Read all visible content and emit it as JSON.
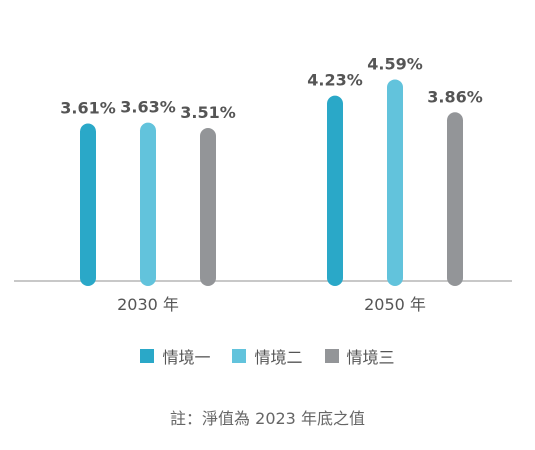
{
  "chart_data": {
    "type": "bar",
    "categories": [
      "2030 年",
      "2050 年"
    ],
    "series": [
      {
        "name": "情境一",
        "color": "#2aa8c8",
        "values": [
          3.61,
          4.23
        ],
        "labels": [
          "3.61%",
          "4.23%"
        ]
      },
      {
        "name": "情境二",
        "color": "#62c3dc",
        "values": [
          3.63,
          4.59
        ],
        "labels": [
          "3.63%",
          "4.59%"
        ]
      },
      {
        "name": "情境三",
        "color": "#939598",
        "values": [
          3.51,
          3.86
        ],
        "labels": [
          "3.51%",
          "3.86%"
        ]
      }
    ],
    "ylim": [
      0,
      5
    ],
    "grid": false,
    "legend_placement": "bottom",
    "note": "註：淨值為 2023 年底之值"
  }
}
